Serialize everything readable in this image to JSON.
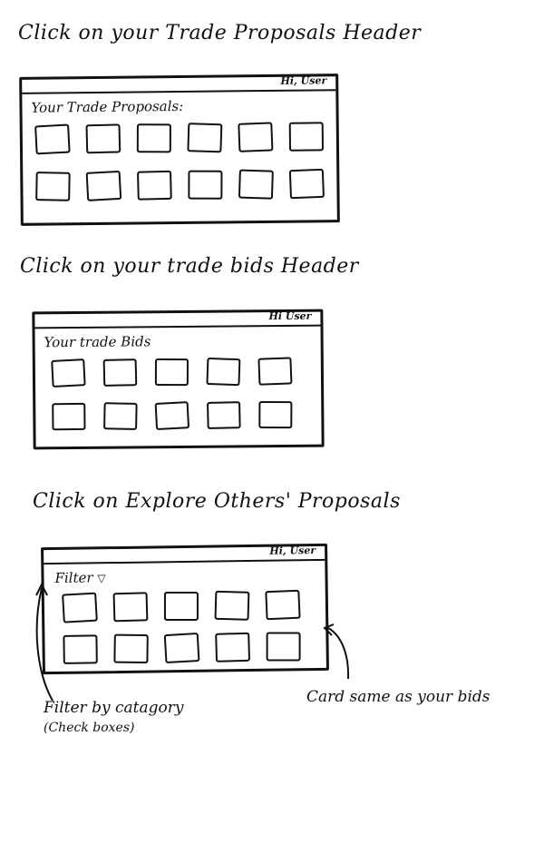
{
  "screens": [
    {
      "caption": "Click on your Trade Proposals Header",
      "user_label": "Hi, User",
      "title": "Your Trade Proposals:",
      "cards_per_row": 6,
      "rows": 2
    },
    {
      "caption": "Click on your trade bids Header",
      "user_label": "Hi User",
      "title": "Your trade Bids",
      "cards_per_row": 5,
      "rows": 2
    },
    {
      "caption": "Click on Explore Others' Proposals",
      "user_label": "Hi, User",
      "title": "Filter",
      "filter_arrow": "▽",
      "cards_per_row": 5,
      "rows": 2
    }
  ],
  "annotations": {
    "filter_note_line1": "Filter by catagory",
    "filter_note_line2": "(Check boxes)",
    "card_note": "Card same as your bids"
  }
}
